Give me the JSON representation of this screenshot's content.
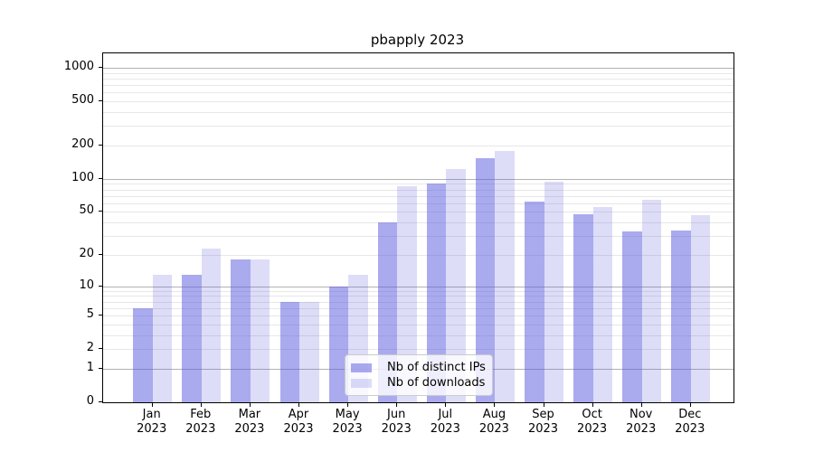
{
  "chart_data": {
    "type": "bar",
    "title": "pbapply 2023",
    "categories": [
      "Jan",
      "Feb",
      "Mar",
      "Apr",
      "May",
      "Jun",
      "Jul",
      "Aug",
      "Sep",
      "Oct",
      "Nov",
      "Dec"
    ],
    "x_tick_labels": [
      "Jan\n2023",
      "Feb\n2023",
      "Mar\n2023",
      "Apr\n2023",
      "May\n2023",
      "Jun\n2023",
      "Jul\n2023",
      "Aug\n2023",
      "Sep\n2023",
      "Oct\n2023",
      "Nov\n2023",
      "Dec\n2023"
    ],
    "series": [
      {
        "name": "Nb of distinct IPs",
        "color": "rgba(85,85,221,0.5)",
        "values": [
          6,
          13,
          18,
          7,
          10,
          40,
          90,
          155,
          62,
          48,
          33,
          34
        ]
      },
      {
        "name": "Nb of downloads",
        "color": "rgba(85,85,221,0.2)",
        "values": [
          13,
          23,
          18,
          7,
          13,
          85,
          123,
          180,
          95,
          55,
          65,
          47
        ]
      }
    ],
    "y_axis": {
      "scale": "log1p",
      "ticks": [
        0,
        1,
        2,
        5,
        10,
        20,
        50,
        100,
        200,
        500,
        1000
      ],
      "major_gridlines": [
        1,
        10,
        100,
        1000
      ],
      "minor_gridline_decades": [
        1,
        10,
        100
      ],
      "ylim": [
        0,
        1000
      ]
    },
    "grid": "horizontal",
    "legend_position": "bottom-center",
    "colors": {
      "bar_base": "#5555dd",
      "major_grid": "#b2b2b2",
      "minor_grid": "#e7e7e7",
      "axis": "#000000",
      "legend_border": "#cccccc",
      "background": "#ffffff"
    }
  }
}
